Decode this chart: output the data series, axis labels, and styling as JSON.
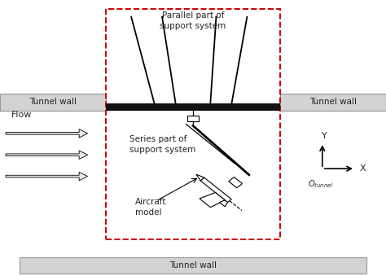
{
  "fig_width": 4.74,
  "fig_height": 3.39,
  "dpi": 100,
  "bg_color": "#ffffff",
  "tunnel_wall_color": "#d3d3d3",
  "tunnel_wall_border": "#999999",
  "black_bar_color": "#111111",
  "dashed_box_color": "#cc0000",
  "text_color": "#222222",
  "flow_arrow_fc": "#e8e8e8",
  "tunnel_wall_label": "Tunnel wall",
  "flow_label": "Flow",
  "parallel_label": "Parallel part of\nsupport system",
  "series_label": "Series part of\nsupport system",
  "aircraft_label": "Aircraft\nmodel",
  "x_label": "X",
  "y_label": "Y",
  "origin_label": "$O_{tunnel}$"
}
